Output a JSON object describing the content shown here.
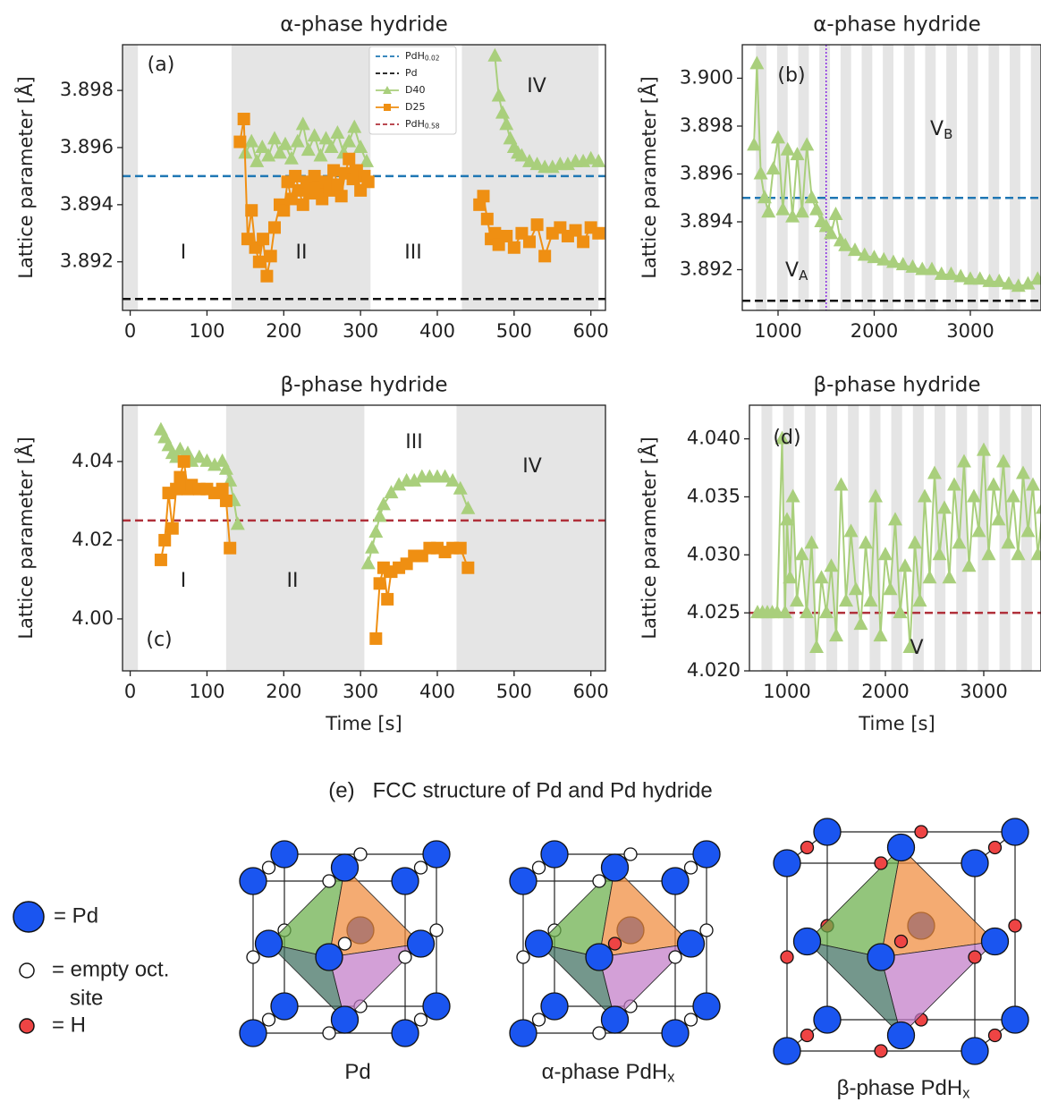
{
  "chart_data": [
    {
      "type": "line",
      "panel_label": "(a)",
      "title": "α-phase hydride",
      "ylabel": "Lattice parameter [Å]",
      "xlim": [
        -10,
        619
      ],
      "ylim": [
        3.8903,
        3.8996
      ],
      "xticks": [
        0,
        100,
        200,
        300,
        400,
        500,
        600
      ],
      "yticks": [
        3.892,
        3.894,
        3.896,
        3.898
      ],
      "shade_color": "#e5e5e5",
      "shaded": [
        [
          -10,
          10
        ],
        [
          132,
          313
        ],
        [
          432,
          610
        ]
      ],
      "regions": [
        "I",
        "II",
        "III",
        "IV"
      ],
      "legend": "upper center",
      "reference_lines": [
        {
          "name": "PdH",
          "sub": "0.02",
          "value": 3.895,
          "color": "#1f77b4"
        },
        {
          "name": "Pd",
          "value": 3.8907,
          "color": "#111111"
        }
      ],
      "legend_extra": [
        {
          "name": "PdH",
          "sub": "0.58",
          "color": "#b0303a"
        }
      ],
      "series": [
        {
          "name": "D40",
          "color": "#a9cf7c",
          "marker": "^",
          "x": [
            150,
            158,
            165,
            172,
            180,
            188,
            195,
            202,
            210,
            218,
            225,
            232,
            240,
            248,
            255,
            262,
            270,
            278,
            285,
            292,
            300,
            308,
            390,
            475,
            480,
            485,
            490,
            495,
            500,
            505,
            510,
            520,
            530,
            540,
            550,
            560,
            570,
            580,
            590,
            600,
            610
          ],
          "values": [
            3.8958,
            3.8962,
            3.8955,
            3.896,
            3.8957,
            3.8963,
            3.8958,
            3.8961,
            3.8956,
            3.8962,
            3.8968,
            3.8959,
            3.8964,
            3.8957,
            3.8963,
            3.896,
            3.8965,
            3.8958,
            3.8962,
            3.8967,
            3.896,
            3.8955,
            null,
            3.8992,
            3.8978,
            3.8972,
            3.8968,
            3.8963,
            3.896,
            3.8958,
            3.8957,
            3.8955,
            3.8954,
            3.8953,
            3.8953,
            3.8954,
            3.8954,
            3.8955,
            3.8955,
            3.8956,
            3.8955
          ]
        },
        {
          "name": "D25",
          "color": "#ef8f12",
          "marker": "s",
          "x": [
            143,
            148,
            153,
            158,
            163,
            168,
            173,
            178,
            183,
            188,
            195,
            200,
            205,
            210,
            215,
            220,
            225,
            230,
            235,
            240,
            245,
            250,
            255,
            260,
            265,
            270,
            275,
            280,
            285,
            290,
            295,
            300,
            305,
            310,
            390,
            455,
            460,
            465,
            470,
            475,
            480,
            490,
            500,
            510,
            520,
            530,
            540,
            550,
            560,
            570,
            580,
            590,
            600,
            610
          ],
          "values": [
            3.8962,
            3.897,
            3.8928,
            3.8938,
            3.8925,
            3.892,
            3.8928,
            3.8915,
            3.8922,
            3.8932,
            3.894,
            3.8938,
            3.8948,
            3.8942,
            3.895,
            3.8945,
            3.894,
            3.8948,
            3.8944,
            3.895,
            3.8946,
            3.8942,
            3.8948,
            3.8945,
            3.8952,
            3.8947,
            3.8943,
            3.8951,
            3.8956,
            3.8949,
            3.8952,
            3.8945,
            3.895,
            3.8948,
            null,
            3.894,
            3.8943,
            3.8935,
            3.8928,
            3.893,
            3.8926,
            3.8929,
            3.8925,
            3.893,
            3.8927,
            3.8933,
            3.8922,
            3.893,
            3.8932,
            3.8929,
            3.8931,
            3.8927,
            3.8932,
            3.893
          ]
        }
      ]
    },
    {
      "type": "line",
      "panel_label": "(b)",
      "title": "α-phase hydride",
      "ylabel": "Lattice parameter  [Å]",
      "xlim": [
        628,
        3735
      ],
      "ylim": [
        3.8903,
        3.9014
      ],
      "xticks": [
        1000,
        2000,
        3000
      ],
      "yticks": [
        3.892,
        3.894,
        3.896,
        3.898,
        {
          "value": 3.9,
          "label": "3.900"
        }
      ],
      "shade_color": "#e5e5e5",
      "shaded": [
        [
          770,
          880
        ],
        [
          990,
          1100
        ],
        [
          1210,
          1320
        ],
        [
          1430,
          1540
        ],
        [
          1650,
          1760
        ],
        [
          1870,
          1980
        ],
        [
          2090,
          2200
        ],
        [
          2310,
          2420
        ],
        [
          2530,
          2640
        ],
        [
          2750,
          2860
        ],
        [
          2970,
          3080
        ],
        [
          3190,
          3300
        ],
        [
          3410,
          3520
        ],
        [
          3630,
          3735
        ]
      ],
      "regions": [
        {
          "text": "V",
          "sub": "A"
        },
        {
          "text": "V",
          "sub": "B"
        }
      ],
      "reference_lines": [
        {
          "value": 3.895,
          "color": "#1f77b4"
        },
        {
          "value": 3.8907,
          "color": "#111111"
        }
      ],
      "vlines": [
        {
          "value": 1500,
          "color": "#8a2be2"
        }
      ],
      "series": [
        {
          "color": "#a9cf7c",
          "marker": "^",
          "x": [
            750,
            780,
            820,
            860,
            900,
            950,
            1000,
            1050,
            1100,
            1150,
            1200,
            1250,
            1300,
            1350,
            1400,
            1450,
            1500,
            1550,
            1600,
            1650,
            1700,
            1800,
            1900,
            2000,
            2100,
            2200,
            2300,
            2400,
            2500,
            2600,
            2700,
            2800,
            2900,
            3000,
            3100,
            3200,
            3300,
            3400,
            3500,
            3600,
            3700
          ],
          "values": [
            3.8972,
            3.9006,
            3.896,
            3.895,
            3.8944,
            3.8962,
            3.8975,
            3.8945,
            3.897,
            3.8942,
            3.8968,
            3.8944,
            3.8972,
            3.895,
            3.8945,
            3.894,
            3.8938,
            3.8935,
            3.8943,
            3.8932,
            3.893,
            3.8928,
            3.8926,
            3.8925,
            3.8924,
            3.8923,
            3.8922,
            3.8921,
            3.892,
            3.892,
            3.8918,
            3.8918,
            3.8917,
            3.8916,
            3.8916,
            3.8915,
            3.8915,
            3.8914,
            3.8913,
            3.8914,
            3.8916
          ]
        }
      ]
    },
    {
      "type": "line",
      "panel_label": "(c)",
      "title": "β-phase hydride",
      "ylabel": "Lattice parameter  [Å]",
      "xlabel": "Time  [s]",
      "xlim": [
        -10,
        619
      ],
      "ylim": [
        3.9868,
        4.0543
      ],
      "xticks": [
        0,
        100,
        200,
        300,
        400,
        500,
        600
      ],
      "yticks": [
        {
          "value": 4,
          "label": "4.00"
        },
        4.02,
        4.04
      ],
      "shade_color": "#e5e5e5",
      "shaded": [
        [
          -10,
          10
        ],
        [
          125,
          305
        ],
        [
          425,
          619
        ]
      ],
      "regions": [
        "I",
        "II",
        "III",
        "IV"
      ],
      "reference_lines": [
        {
          "value": 4.025,
          "color": "#b0303a"
        }
      ],
      "series": [
        {
          "color": "#a9cf7c",
          "marker": "^",
          "x": [
            40,
            45,
            50,
            55,
            60,
            65,
            70,
            75,
            80,
            90,
            100,
            110,
            120,
            125,
            130,
            135,
            140,
            200,
            310,
            315,
            320,
            325,
            330,
            340,
            350,
            360,
            370,
            380,
            390,
            400,
            410,
            420,
            430,
            440
          ],
          "values": [
            4.048,
            4.046,
            4.044,
            4.042,
            4.041,
            4.043,
            4.041,
            4.042,
            4.04,
            4.041,
            4.04,
            4.039,
            4.04,
            4.038,
            4.035,
            4.03,
            4.024,
            null,
            4.014,
            4.018,
            4.022,
            4.026,
            4.029,
            4.032,
            4.034,
            4.035,
            4.035,
            4.036,
            4.036,
            4.036,
            4.036,
            4.035,
            4.033,
            4.028
          ]
        },
        {
          "color": "#ef8f12",
          "marker": "s",
          "x": [
            40,
            45,
            50,
            55,
            60,
            65,
            70,
            75,
            80,
            90,
            100,
            110,
            120,
            125,
            130,
            200,
            320,
            325,
            330,
            335,
            340,
            350,
            360,
            370,
            380,
            390,
            400,
            410,
            420,
            430,
            440
          ],
          "values": [
            4.015,
            4.02,
            4.032,
            4.023,
            4.033,
            4.036,
            4.04,
            4.033,
            4.034,
            4.033,
            4.033,
            4.032,
            4.033,
            4.03,
            4.018,
            null,
            3.995,
            4.009,
            4.013,
            4.005,
            4.012,
            4.013,
            4.014,
            4.016,
            4.016,
            4.018,
            4.018,
            4.017,
            4.018,
            4.018,
            4.013
          ]
        }
      ]
    },
    {
      "type": "line",
      "panel_label": "(d)",
      "title": "β-phase hydride",
      "ylabel": "Lattice parameter  [Å]",
      "xlabel": "Time  [s]",
      "xlim": [
        618,
        3582
      ],
      "ylim": [
        4.02,
        4.0429
      ],
      "xticks": [
        1000,
        2000,
        3000
      ],
      "yticks": [
        {
          "value": 4.02,
          "label": "4.020"
        },
        4.025,
        {
          "value": 4.03,
          "label": "4.030"
        },
        4.035,
        {
          "value": 4.04,
          "label": "4.040"
        }
      ],
      "shade_color": "#e5e5e5",
      "shaded": [
        [
          740,
          850
        ],
        [
          960,
          1070
        ],
        [
          1180,
          1290
        ],
        [
          1400,
          1510
        ],
        [
          1620,
          1730
        ],
        [
          1840,
          1950
        ],
        [
          2060,
          2170
        ],
        [
          2280,
          2390
        ],
        [
          2500,
          2610
        ],
        [
          2720,
          2830
        ],
        [
          2940,
          3050
        ],
        [
          3160,
          3270
        ],
        [
          3380,
          3490
        ]
      ],
      "regions": [
        "V"
      ],
      "reference_lines": [
        {
          "value": 4.025,
          "color": "#b0303a"
        }
      ],
      "series": [
        {
          "color": "#a9cf7c",
          "marker": "^",
          "x": [
            700,
            750,
            800,
            850,
            900,
            950,
            980,
            1000,
            1030,
            1060,
            1100,
            1150,
            1200,
            1250,
            1300,
            1350,
            1400,
            1450,
            1500,
            1550,
            1600,
            1650,
            1700,
            1750,
            1800,
            1850,
            1900,
            1950,
            2000,
            2050,
            2100,
            2150,
            2200,
            2250,
            2300,
            2350,
            2400,
            2450,
            2500,
            2550,
            2600,
            2650,
            2700,
            2750,
            2800,
            2850,
            2900,
            2950,
            3000,
            3050,
            3100,
            3150,
            3200,
            3250,
            3300,
            3350,
            3400,
            3450,
            3500,
            3550,
            3600
          ],
          "values": [
            4.025,
            4.025,
            4.025,
            4.025,
            4.025,
            4.04,
            4.025,
            4.033,
            4.028,
            4.035,
            4.026,
            4.03,
            4.025,
            4.031,
            4.022,
            4.028,
            4.025,
            4.029,
            4.023,
            4.036,
            4.026,
            4.032,
            4.027,
            4.024,
            4.031,
            4.026,
            4.035,
            4.023,
            4.03,
            4.027,
            4.033,
            4.025,
            4.029,
            4.022,
            4.031,
            4.026,
            4.035,
            4.028,
            4.037,
            4.03,
            4.034,
            4.028,
            4.036,
            4.031,
            4.038,
            4.029,
            4.035,
            4.032,
            4.039,
            4.03,
            4.036,
            4.033,
            4.038,
            4.031,
            4.035,
            4.03,
            4.037,
            4.032,
            4.036,
            4.03,
            4.034
          ]
        }
      ]
    }
  ],
  "diagram": {
    "title": "(e)   FCC structure of Pd and Pd hydride",
    "legend": {
      "pd": "= Pd",
      "empty": [
        "= empty oct.",
        "site"
      ],
      "h": "= H"
    },
    "captions": [
      {
        "text": "Pd"
      },
      {
        "text": "α-phase PdH",
        "sub": "x"
      },
      {
        "text": "β-phase PdH",
        "sub": "x"
      }
    ]
  }
}
